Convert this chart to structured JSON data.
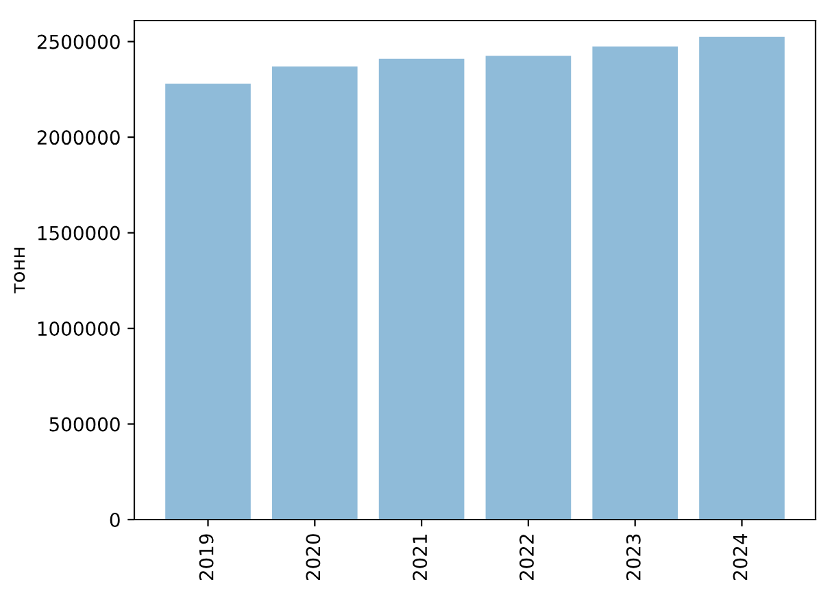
{
  "chart_data": {
    "type": "bar",
    "ylabel": "тонн",
    "categories": [
      "2019",
      "2020",
      "2021",
      "2022",
      "2023",
      "2024"
    ],
    "values": [
      2280000,
      2370000,
      2410000,
      2425000,
      2475000,
      2525000
    ],
    "color": "#8fbbd9",
    "ylim": [
      0,
      2610000
    ],
    "yticks": [
      0,
      500000,
      1000000,
      1500000,
      2000000,
      2500000
    ],
    "grid": false,
    "legend": false
  }
}
